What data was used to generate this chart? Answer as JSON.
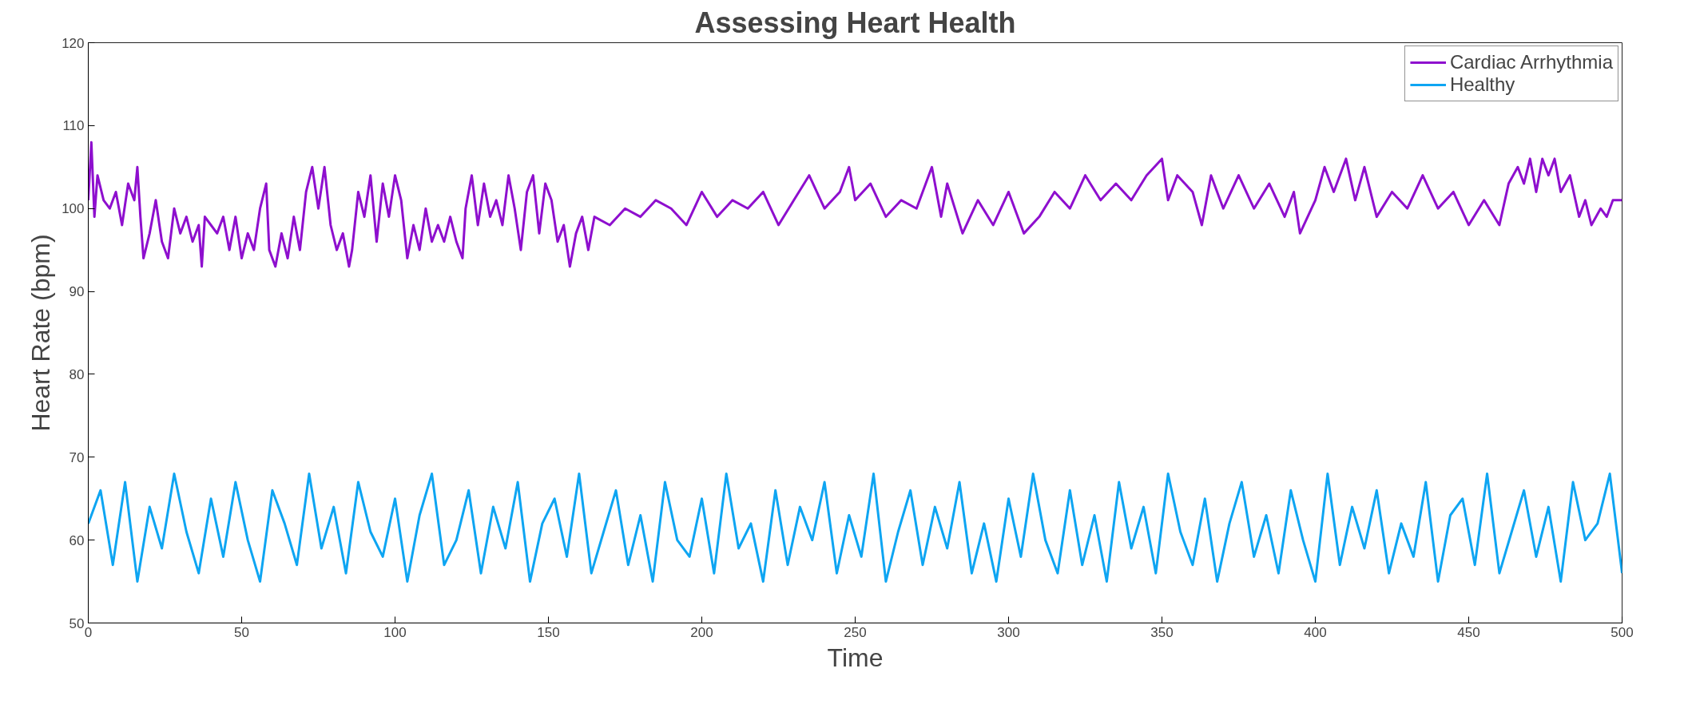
{
  "chart_data": {
    "type": "line",
    "title": "Assessing Heart Health",
    "xlabel": "Time",
    "ylabel": "Heart Rate (bpm)",
    "xlim": [
      0,
      500
    ],
    "ylim": [
      50,
      120
    ],
    "xticks": [
      0,
      50,
      100,
      150,
      200,
      250,
      300,
      350,
      400,
      450,
      500
    ],
    "yticks": [
      50,
      60,
      70,
      80,
      90,
      100,
      110,
      120
    ],
    "grid": false,
    "legend": "top right",
    "marker": "none",
    "line_style": "solid",
    "series": [
      {
        "name": "Cardiac Arrhythmia",
        "color": "#8e0fce",
        "x": [
          0,
          1,
          2,
          3,
          5,
          7,
          9,
          11,
          13,
          15,
          16,
          17,
          18,
          20,
          22,
          24,
          26,
          28,
          30,
          32,
          34,
          36,
          37,
          38,
          40,
          42,
          44,
          46,
          48,
          50,
          52,
          54,
          56,
          58,
          59,
          61,
          63,
          65,
          67,
          69,
          71,
          73,
          75,
          77,
          79,
          81,
          83,
          85,
          86,
          88,
          90,
          92,
          94,
          96,
          98,
          100,
          102,
          104,
          106,
          108,
          110,
          112,
          114,
          116,
          118,
          120,
          122,
          123,
          125,
          127,
          129,
          131,
          133,
          135,
          137,
          139,
          141,
          143,
          145,
          147,
          149,
          151,
          153,
          155,
          157,
          159,
          161,
          163,
          165,
          170,
          175,
          180,
          185,
          190,
          195,
          200,
          205,
          210,
          215,
          220,
          225,
          230,
          235,
          240,
          245,
          248,
          250,
          255,
          260,
          265,
          270,
          275,
          278,
          280,
          285,
          290,
          295,
          300,
          305,
          310,
          315,
          320,
          325,
          330,
          335,
          340,
          345,
          350,
          352,
          355,
          360,
          363,
          366,
          370,
          375,
          380,
          385,
          390,
          393,
          395,
          400,
          403,
          406,
          410,
          413,
          416,
          420,
          425,
          430,
          435,
          440,
          445,
          450,
          455,
          460,
          463,
          466,
          468,
          470,
          472,
          474,
          476,
          478,
          480,
          483,
          486,
          488,
          490,
          493,
          495,
          497,
          500
        ],
        "values": [
          101,
          108,
          99,
          104,
          101,
          100,
          102,
          98,
          103,
          101,
          105,
          99,
          94,
          97,
          101,
          96,
          94,
          100,
          97,
          99,
          96,
          98,
          93,
          99,
          98,
          97,
          99,
          95,
          99,
          94,
          97,
          95,
          100,
          103,
          95,
          93,
          97,
          94,
          99,
          95,
          102,
          105,
          100,
          105,
          98,
          95,
          97,
          93,
          95,
          102,
          99,
          104,
          96,
          103,
          99,
          104,
          101,
          94,
          98,
          95,
          100,
          96,
          98,
          96,
          99,
          96,
          94,
          100,
          104,
          98,
          103,
          99,
          101,
          98,
          104,
          100,
          95,
          102,
          104,
          97,
          103,
          101,
          96,
          98,
          93,
          97,
          99,
          95,
          99,
          98,
          100,
          99,
          101,
          100,
          98,
          102,
          99,
          101,
          100,
          102,
          98,
          101,
          104,
          100,
          102,
          105,
          101,
          103,
          99,
          101,
          100,
          105,
          99,
          103,
          97,
          101,
          98,
          102,
          97,
          99,
          102,
          100,
          104,
          101,
          103,
          101,
          104,
          106,
          101,
          104,
          102,
          98,
          104,
          100,
          104,
          100,
          103,
          99,
          102,
          97,
          101,
          105,
          102,
          106,
          101,
          105,
          99,
          102,
          100,
          104,
          100,
          102,
          98,
          101,
          98,
          103,
          105,
          103,
          106,
          102,
          106,
          104,
          106,
          102,
          104,
          99,
          101,
          98,
          100,
          99,
          101,
          101
        ]
      },
      {
        "name": "Healthy",
        "color": "#0ea5f2",
        "x": [
          0,
          4,
          8,
          12,
          16,
          20,
          24,
          28,
          32,
          36,
          40,
          44,
          48,
          52,
          56,
          60,
          64,
          68,
          72,
          76,
          80,
          84,
          88,
          92,
          96,
          100,
          104,
          108,
          112,
          116,
          120,
          124,
          128,
          132,
          136,
          140,
          144,
          148,
          152,
          156,
          160,
          164,
          168,
          172,
          176,
          180,
          184,
          188,
          192,
          196,
          200,
          204,
          208,
          212,
          216,
          220,
          224,
          228,
          232,
          236,
          240,
          244,
          248,
          252,
          256,
          260,
          264,
          268,
          272,
          276,
          280,
          284,
          288,
          292,
          296,
          300,
          304,
          308,
          312,
          316,
          320,
          324,
          328,
          332,
          336,
          340,
          344,
          348,
          352,
          356,
          360,
          364,
          368,
          372,
          376,
          380,
          384,
          388,
          392,
          396,
          400,
          404,
          408,
          412,
          416,
          420,
          424,
          428,
          432,
          436,
          440,
          444,
          448,
          452,
          456,
          460,
          464,
          468,
          472,
          476,
          480,
          484,
          488,
          492,
          496,
          500
        ],
        "values": [
          62,
          66,
          57,
          67,
          55,
          64,
          59,
          68,
          61,
          56,
          65,
          58,
          67,
          60,
          55,
          66,
          62,
          57,
          68,
          59,
          64,
          56,
          67,
          61,
          58,
          65,
          55,
          63,
          68,
          57,
          60,
          66,
          56,
          64,
          59,
          67,
          55,
          62,
          65,
          58,
          68,
          56,
          61,
          66,
          57,
          63,
          55,
          67,
          60,
          58,
          65,
          56,
          68,
          59,
          62,
          55,
          66,
          57,
          64,
          60,
          67,
          56,
          63,
          58,
          68,
          55,
          61,
          66,
          57,
          64,
          59,
          67,
          56,
          62,
          55,
          65,
          58,
          68,
          60,
          56,
          66,
          57,
          63,
          55,
          67,
          59,
          64,
          56,
          68,
          61,
          57,
          65,
          55,
          62,
          67,
          58,
          63,
          56,
          66,
          60,
          55,
          68,
          57,
          64,
          59,
          66,
          56,
          62,
          58,
          67,
          55,
          63,
          65,
          57,
          68,
          56,
          61,
          66,
          58,
          64,
          55,
          67,
          60,
          62,
          68,
          56
        ]
      }
    ]
  }
}
